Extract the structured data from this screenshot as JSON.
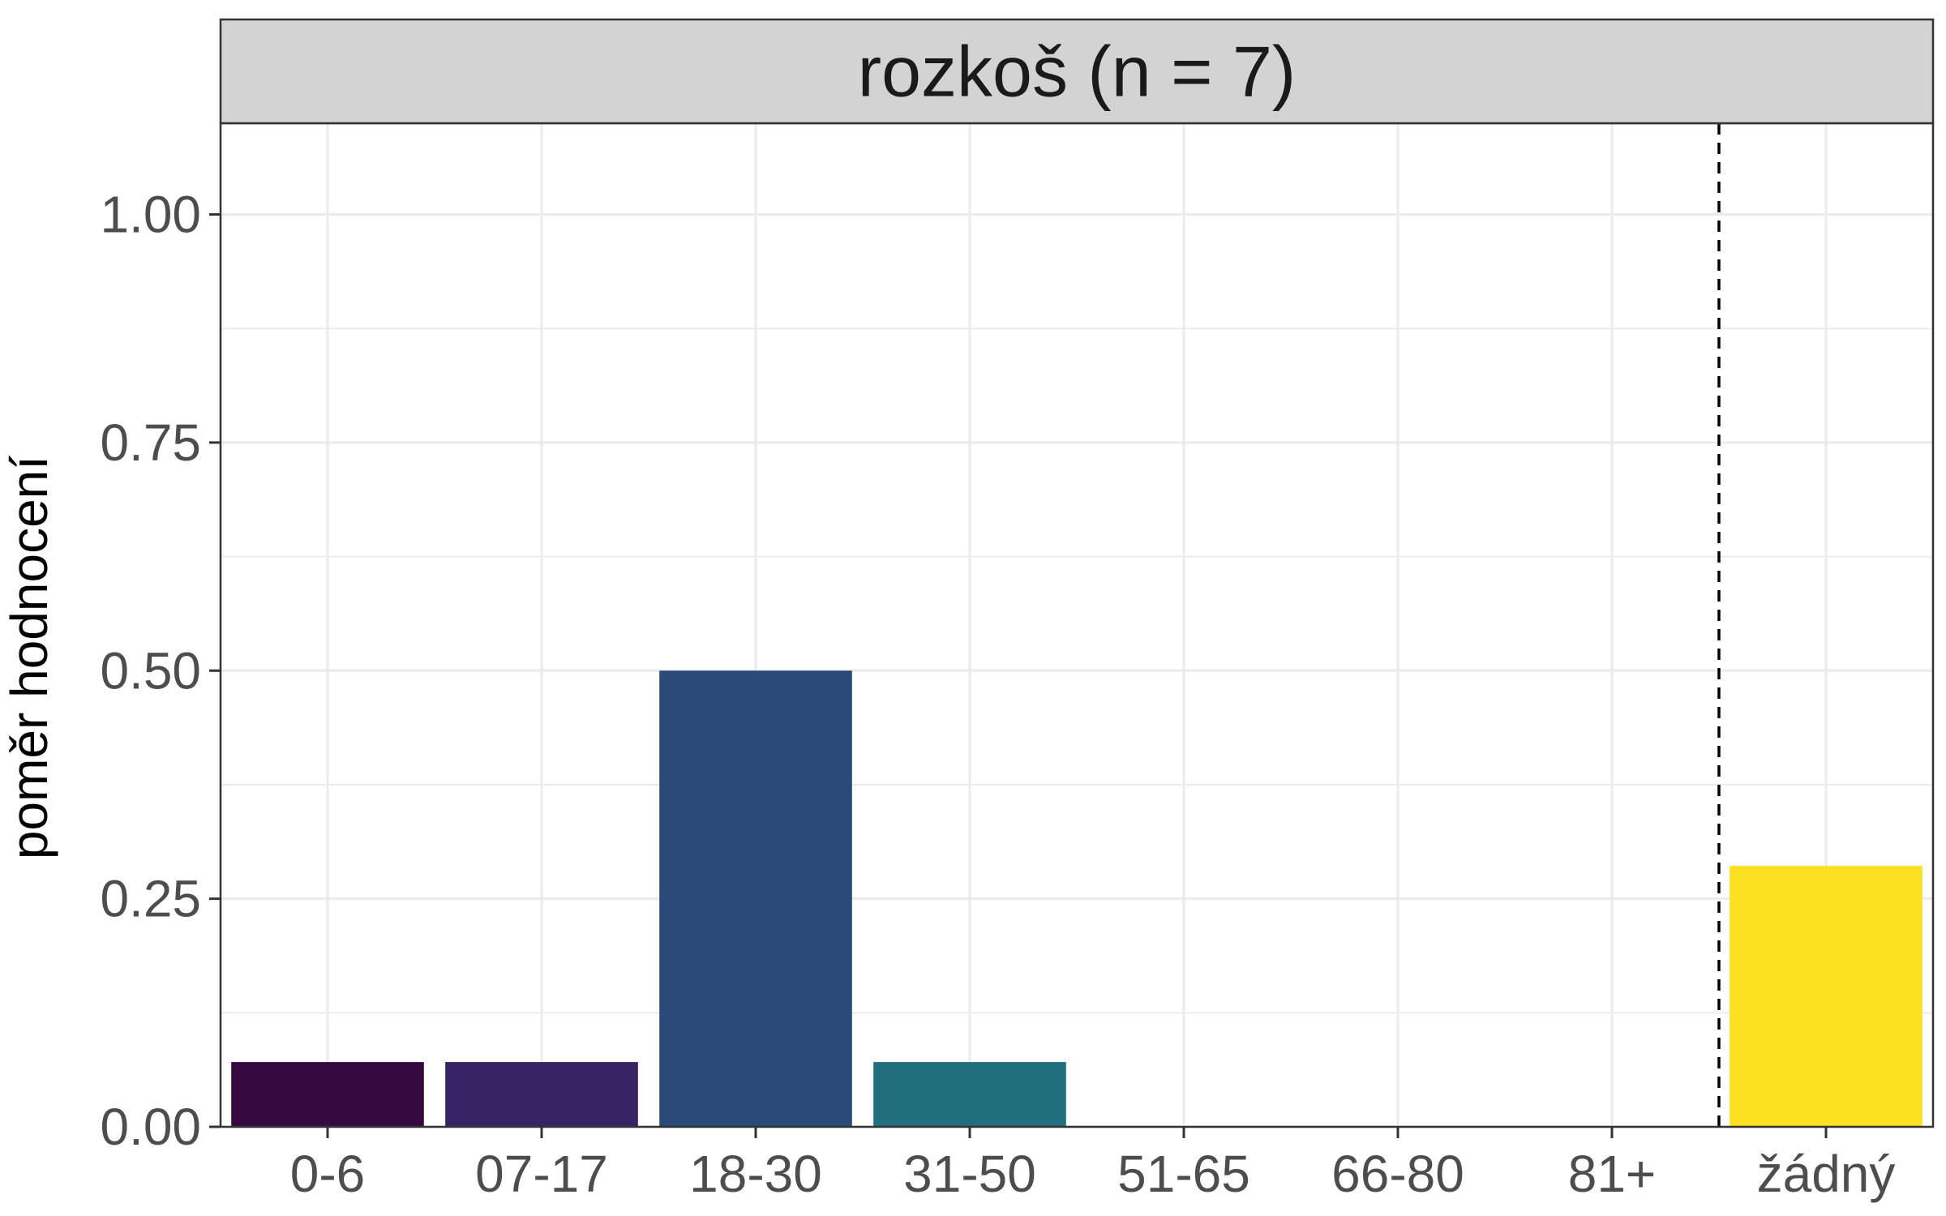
{
  "chart_data": {
    "type": "bar",
    "title": "rozkoš (n = 7)",
    "xlabel": "",
    "ylabel": "poměr hodnocení",
    "categories": [
      "0-6",
      "07-17",
      "18-30",
      "31-50",
      "51-65",
      "66-80",
      "81+",
      "žádný"
    ],
    "values": [
      0.071,
      0.071,
      0.5,
      0.071,
      0,
      0,
      0,
      0.286
    ],
    "bar_colors": [
      "#360A3E",
      "#372266",
      "#2B4A78",
      "#1F6F7C",
      "#ffffff",
      "#ffffff",
      "#ffffff",
      "#FBE220"
    ],
    "ylim": [
      0,
      1.1
    ],
    "yticks": [
      0,
      0.25,
      0.5,
      0.75,
      1.0
    ],
    "ytick_labels": [
      "0.00",
      "0.25",
      "0.50",
      "0.75",
      "1.00"
    ],
    "reference_line": {
      "style": "dashed",
      "position_between": [
        "81+",
        "žádný"
      ]
    },
    "grid": true,
    "legend": "none",
    "colors": {
      "strip_background": "#D3D3D3",
      "grid": "#EBEBEB",
      "axis": "#333333"
    }
  }
}
